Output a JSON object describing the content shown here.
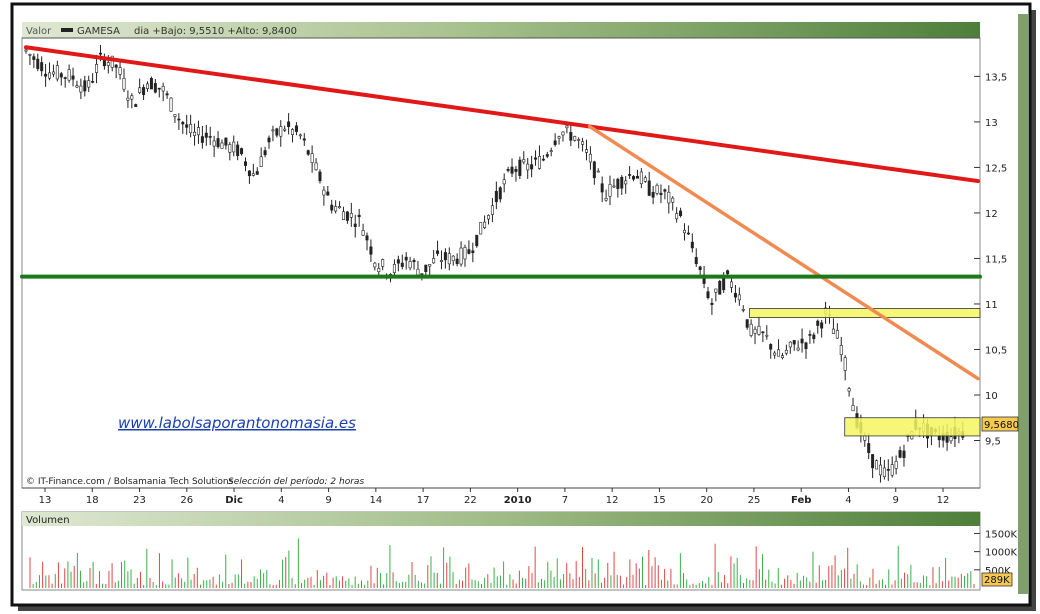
{
  "header": {
    "valor_label": "Valor",
    "ticker": "GAMESA",
    "info": "dia +Bajo: 9,5510 +Alto: 9,8400"
  },
  "watermark_url": "www.labolsaporantonomasia.es",
  "footer_source": "© IT-Finance.com / Bolsamania Tech Solutions",
  "footer_period": "Selección del período: 2 horas",
  "price_badge": "9,5680",
  "volume_badge": "289K",
  "volume_label": "Volumen",
  "colors": {
    "resistance_red": "#e01818",
    "trend_orange": "#f08a50",
    "support_green": "#1a7a1a",
    "zone_yellow": "#f5f560",
    "vol_up": "#3ab04a",
    "vol_down": "#e04848",
    "candle": "#222222"
  },
  "chart_data": [
    {
      "type": "candlestick",
      "title": "GAMESA",
      "x_tick_labels": [
        "13",
        "18",
        "23",
        "26",
        "Dic",
        "4",
        "9",
        "14",
        "17",
        "22",
        "2010",
        "7",
        "12",
        "15",
        "20",
        "25",
        "Feb",
        "4",
        "9",
        "12"
      ],
      "y_tick_labels": [
        "13,5",
        "13",
        "12,5",
        "12",
        "11,5",
        "11",
        "10,5",
        "10",
        "9,5"
      ],
      "ylim": [
        9.0,
        13.9
      ],
      "close_path": [
        [
          0,
          13.78
        ],
        [
          3,
          13.55
        ],
        [
          6,
          13.5
        ],
        [
          8,
          13.35
        ],
        [
          10,
          13.72
        ],
        [
          12,
          13.6
        ],
        [
          14,
          13.2
        ],
        [
          16,
          13.45
        ],
        [
          18,
          13.35
        ],
        [
          20,
          13.05
        ],
        [
          22,
          12.85
        ],
        [
          24,
          12.85
        ],
        [
          26,
          12.75
        ],
        [
          28,
          12.68
        ],
        [
          30,
          12.4
        ],
        [
          32,
          12.8
        ],
        [
          34,
          12.95
        ],
        [
          36,
          12.85
        ],
        [
          38,
          12.5
        ],
        [
          40,
          12.1
        ],
        [
          42,
          12.0
        ],
        [
          44,
          11.9
        ],
        [
          46,
          11.45
        ],
        [
          48,
          11.35
        ],
        [
          50,
          11.5
        ],
        [
          52,
          11.35
        ],
        [
          54,
          11.5
        ],
        [
          56,
          11.5
        ],
        [
          58,
          11.55
        ],
        [
          60,
          11.85
        ],
        [
          62,
          12.2
        ],
        [
          64,
          12.5
        ],
        [
          66,
          12.5
        ],
        [
          68,
          12.6
        ],
        [
          70,
          12.9
        ],
        [
          72,
          12.85
        ],
        [
          74,
          12.6
        ],
        [
          76,
          12.2
        ],
        [
          78,
          12.35
        ],
        [
          80,
          12.45
        ],
        [
          82,
          12.25
        ],
        [
          84,
          12.2
        ],
        [
          86,
          11.95
        ],
        [
          88,
          11.5
        ],
        [
          90,
          11.0
        ],
        [
          92,
          11.3
        ],
        [
          94,
          11.05
        ],
        [
          95,
          10.7
        ],
        [
          97,
          10.65
        ],
        [
          99,
          10.4
        ],
        [
          101,
          10.55
        ],
        [
          103,
          10.6
        ],
        [
          105,
          10.9
        ],
        [
          107,
          10.55
        ],
        [
          109,
          9.75
        ],
        [
          111,
          9.3
        ],
        [
          113,
          9.1
        ],
        [
          115,
          9.35
        ],
        [
          117,
          9.7
        ],
        [
          119,
          9.55
        ],
        [
          121,
          9.55
        ],
        [
          123,
          9.6
        ]
      ]
    },
    {
      "type": "bar",
      "title": "Volumen",
      "y_tick_labels": [
        "1500K",
        "1000K",
        "500K"
      ],
      "ylim": [
        0,
        1650
      ],
      "unit": "K",
      "last_value": "289K"
    }
  ],
  "trendlines": [
    {
      "name": "resistance",
      "color": "resistance_red",
      "from": [
        0,
        13.82
      ],
      "to": [
        125,
        12.35
      ]
    },
    {
      "name": "trend",
      "color": "trend_orange",
      "from": [
        74,
        12.95
      ],
      "to": [
        125,
        10.18
      ]
    },
    {
      "name": "support",
      "color": "support_green",
      "from": [
        0,
        11.3
      ],
      "to": [
        125,
        11.3
      ]
    }
  ],
  "zones": [
    {
      "name": "resistance-zone",
      "from_x": 95,
      "y_top": 10.95,
      "y_bottom": 10.85
    },
    {
      "name": "support-zone",
      "from_x": 107.5,
      "y_top": 9.75,
      "y_bottom": 9.55
    }
  ]
}
